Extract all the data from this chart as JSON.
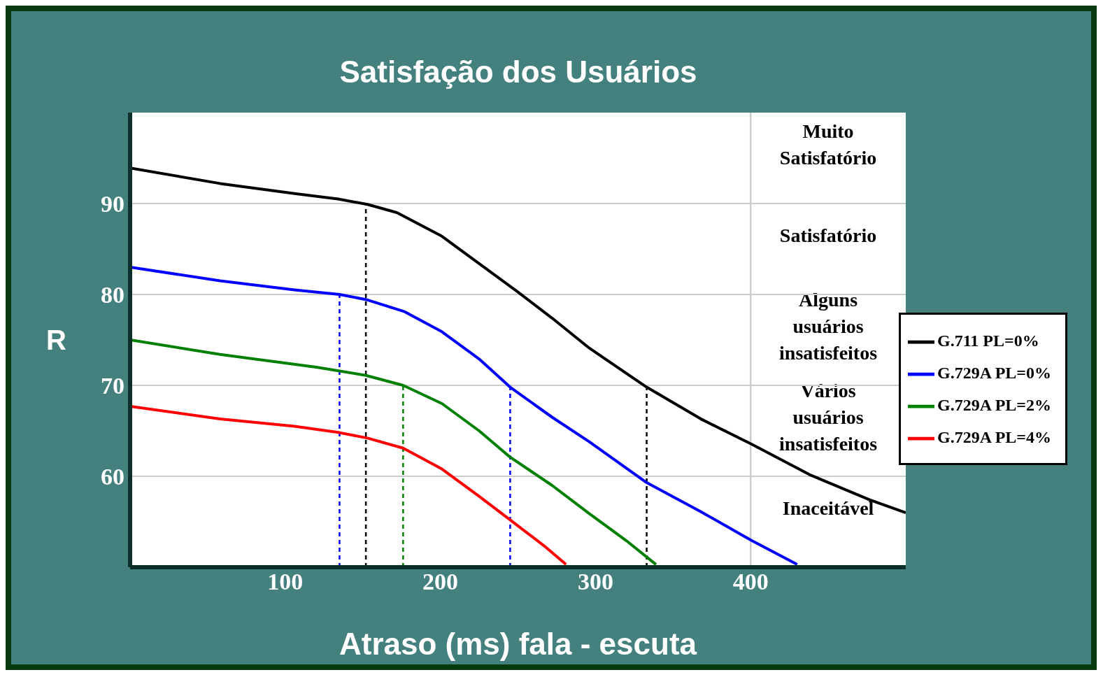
{
  "chart_data": {
    "type": "line",
    "title": "Satisfação dos Usuários",
    "xlabel": "Atraso (ms) fala - escuta",
    "ylabel": "R",
    "xlim": [
      0,
      500
    ],
    "xticks": [
      100,
      200,
      300,
      400
    ],
    "ylim": [
      50,
      100
    ],
    "yticks": [
      60,
      70,
      80,
      90
    ],
    "grid": "y",
    "legend": "right",
    "marker": "none",
    "line_style": "solid",
    "series": [
      {
        "name": "G.711    PL=0%",
        "color": "#000000",
        "x": [
          0,
          58,
          106,
          134,
          153,
          172,
          201,
          225,
          249,
          272,
          296,
          333,
          368,
          401,
          439,
          477,
          500
        ],
        "values": [
          93.9,
          92.2,
          91.1,
          90.5,
          89.9,
          89,
          86.4,
          83.4,
          80.4,
          77.4,
          74.1,
          69.8,
          66.3,
          63.5,
          60.1,
          57.4,
          56
        ]
      },
      {
        "name": "G.729A PL=0%",
        "color": "#0000ff",
        "x": [
          0,
          58,
          106,
          135,
          153,
          177,
          201,
          225,
          245,
          272,
          296,
          333,
          368,
          401,
          430
        ],
        "values": [
          83,
          81.5,
          80.5,
          80,
          79.4,
          78.1,
          75.9,
          72.9,
          69.8,
          66.5,
          63.8,
          59.3,
          56.1,
          52.9,
          50.3
        ]
      },
      {
        "name": "G.729A PL=2%",
        "color": "#008000",
        "x": [
          0,
          58,
          120,
          152,
          176,
          201,
          225,
          245,
          272,
          296,
          320,
          339
        ],
        "values": [
          75,
          73.4,
          72,
          71.1,
          70,
          68,
          65,
          62.1,
          59,
          55.9,
          52.9,
          50.3
        ]
      },
      {
        "name": "G.729A PL=4%",
        "color": "#ff0000",
        "x": [
          0,
          58,
          106,
          135,
          153,
          176,
          201,
          225,
          245,
          268,
          281
        ],
        "values": [
          67.7,
          66.3,
          65.5,
          64.8,
          64.2,
          63.1,
          60.8,
          57.8,
          55.2,
          52.2,
          50.3
        ]
      }
    ],
    "ref_lines": [
      {
        "axis": "x",
        "value": 135,
        "color": "#0000ff",
        "line_style": "dashed"
      },
      {
        "axis": "x",
        "value": 152,
        "color": "#000000",
        "line_style": "dashed"
      },
      {
        "axis": "x",
        "value": 176,
        "color": "#008000",
        "line_style": "dashed"
      },
      {
        "axis": "x",
        "value": 245,
        "color": "#0000ff",
        "line_style": "dashed"
      },
      {
        "axis": "x",
        "value": 333,
        "color": "#000000",
        "line_style": "dashed"
      },
      {
        "axis": "x",
        "value": 400,
        "color": "#cccccc",
        "line_style": "solid"
      }
    ],
    "bands": [
      {
        "axis": "y",
        "from": 90,
        "to": 100,
        "label": "Muito Satisfatório",
        "color": "#ffffff"
      },
      {
        "axis": "y",
        "from": 80,
        "to": 90,
        "label": "Satisfatório",
        "color": "#ffffff"
      },
      {
        "axis": "y",
        "from": 70,
        "to": 80,
        "label": "Alguns usuários insatisfeitos",
        "color": "#ffffff"
      },
      {
        "axis": "y",
        "from": 60,
        "to": 70,
        "label": "Vários usuários insatisfeitos",
        "color": "#ffffff"
      },
      {
        "axis": "y",
        "from": 50,
        "to": 60,
        "label": "Inaceitável",
        "color": "#ffffff"
      }
    ]
  }
}
